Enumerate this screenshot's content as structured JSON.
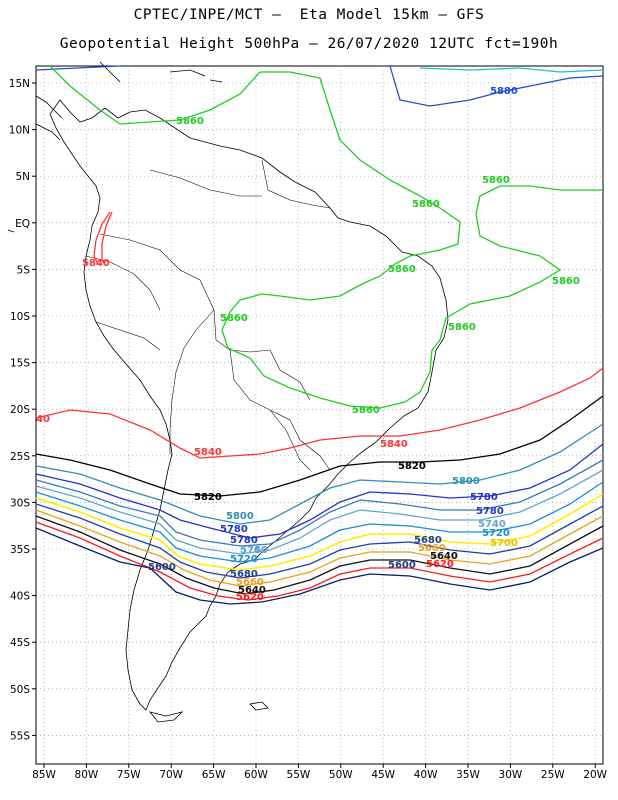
{
  "header": {
    "line1": "CPTEC/INPE/MCT –  Eta Model 15km – GFS",
    "line2": "Geopotential Height 500hPa – 26/07/2020 12UTC fct=190h"
  },
  "axes": {
    "lat_labels": [
      "15N",
      "10N",
      "5N",
      "EQ",
      "5S",
      "10S",
      "15S",
      "20S",
      "25S",
      "30S",
      "35S",
      "40S",
      "45S",
      "50S",
      "55S"
    ],
    "lon_labels": [
      "85W",
      "80W",
      "75W",
      "70W",
      "65W",
      "60W",
      "55W",
      "50W",
      "45W",
      "40W",
      "35W",
      "30W",
      "25W",
      "20W"
    ]
  },
  "contour_colors": {
    "5580": "#0b1f6e",
    "5600": "#1f3a8a",
    "5620": "#ff1a1a",
    "5640": "#111111",
    "5660": "#e8a020",
    "5680": "#1e3fa0",
    "5700": "#ffee00",
    "5720": "#1a8fd0",
    "5740": "#5fa8c8",
    "5760": "#3a7ab8",
    "5780": "#2233cc",
    "5800": "#2f8fb0",
    "5820": "#000000",
    "5840": "#ff3333",
    "5860": "#22cc22",
    "5880": "#1f4fd0",
    "5900": "#20c0c8"
  },
  "contour_labels": [
    {
      "text": "5880",
      "color": "#1f4fd0"
    },
    {
      "text": "5860",
      "color": "#22cc22"
    },
    {
      "text": "5860",
      "color": "#22cc22"
    },
    {
      "text": "5860",
      "color": "#22cc22"
    },
    {
      "text": "5860",
      "color": "#22cc22"
    },
    {
      "text": "5860",
      "color": "#22cc22"
    },
    {
      "text": "5860",
      "color": "#22cc22"
    },
    {
      "text": "5860",
      "color": "#22cc22"
    },
    {
      "text": "5860",
      "color": "#22cc22"
    },
    {
      "text": "5840",
      "color": "#ff3333"
    },
    {
      "text": "5840",
      "color": "#ff3333"
    },
    {
      "text": "5840",
      "color": "#ff3333"
    },
    {
      "text": "40",
      "color": "#ff3333"
    },
    {
      "text": "5820",
      "color": "#000000"
    },
    {
      "text": "5820",
      "color": "#000000"
    },
    {
      "text": "5800",
      "color": "#2f8fb0"
    },
    {
      "text": "5800",
      "color": "#2f8fb0"
    },
    {
      "text": "5780",
      "color": "#2233cc"
    },
    {
      "text": "5780",
      "color": "#2233cc"
    },
    {
      "text": "5780",
      "color": "#2233cc"
    },
    {
      "text": "5760",
      "color": "#3a7ab8"
    },
    {
      "text": "5780",
      "color": "#2233cc"
    },
    {
      "text": "5740",
      "color": "#5fa8c8"
    },
    {
      "text": "5740",
      "color": "#5fa8c8"
    },
    {
      "text": "5720",
      "color": "#1a8fd0"
    },
    {
      "text": "5720",
      "color": "#1a8fd0"
    },
    {
      "text": "5700",
      "color": "#e8c000"
    },
    {
      "text": "5680",
      "color": "#1e3fa0"
    },
    {
      "text": "5680",
      "color": "#1e3fa0"
    },
    {
      "text": "5660",
      "color": "#e8a020"
    },
    {
      "text": "5660",
      "color": "#e8a020"
    },
    {
      "text": "5640",
      "color": "#111111"
    },
    {
      "text": "5640",
      "color": "#111111"
    },
    {
      "text": "5620",
      "color": "#ff1a1a"
    },
    {
      "text": "5620",
      "color": "#ff1a1a"
    },
    {
      "text": "5600",
      "color": "#1f3a8a"
    },
    {
      "text": "5600",
      "color": "#1f3a8a"
    }
  ]
}
